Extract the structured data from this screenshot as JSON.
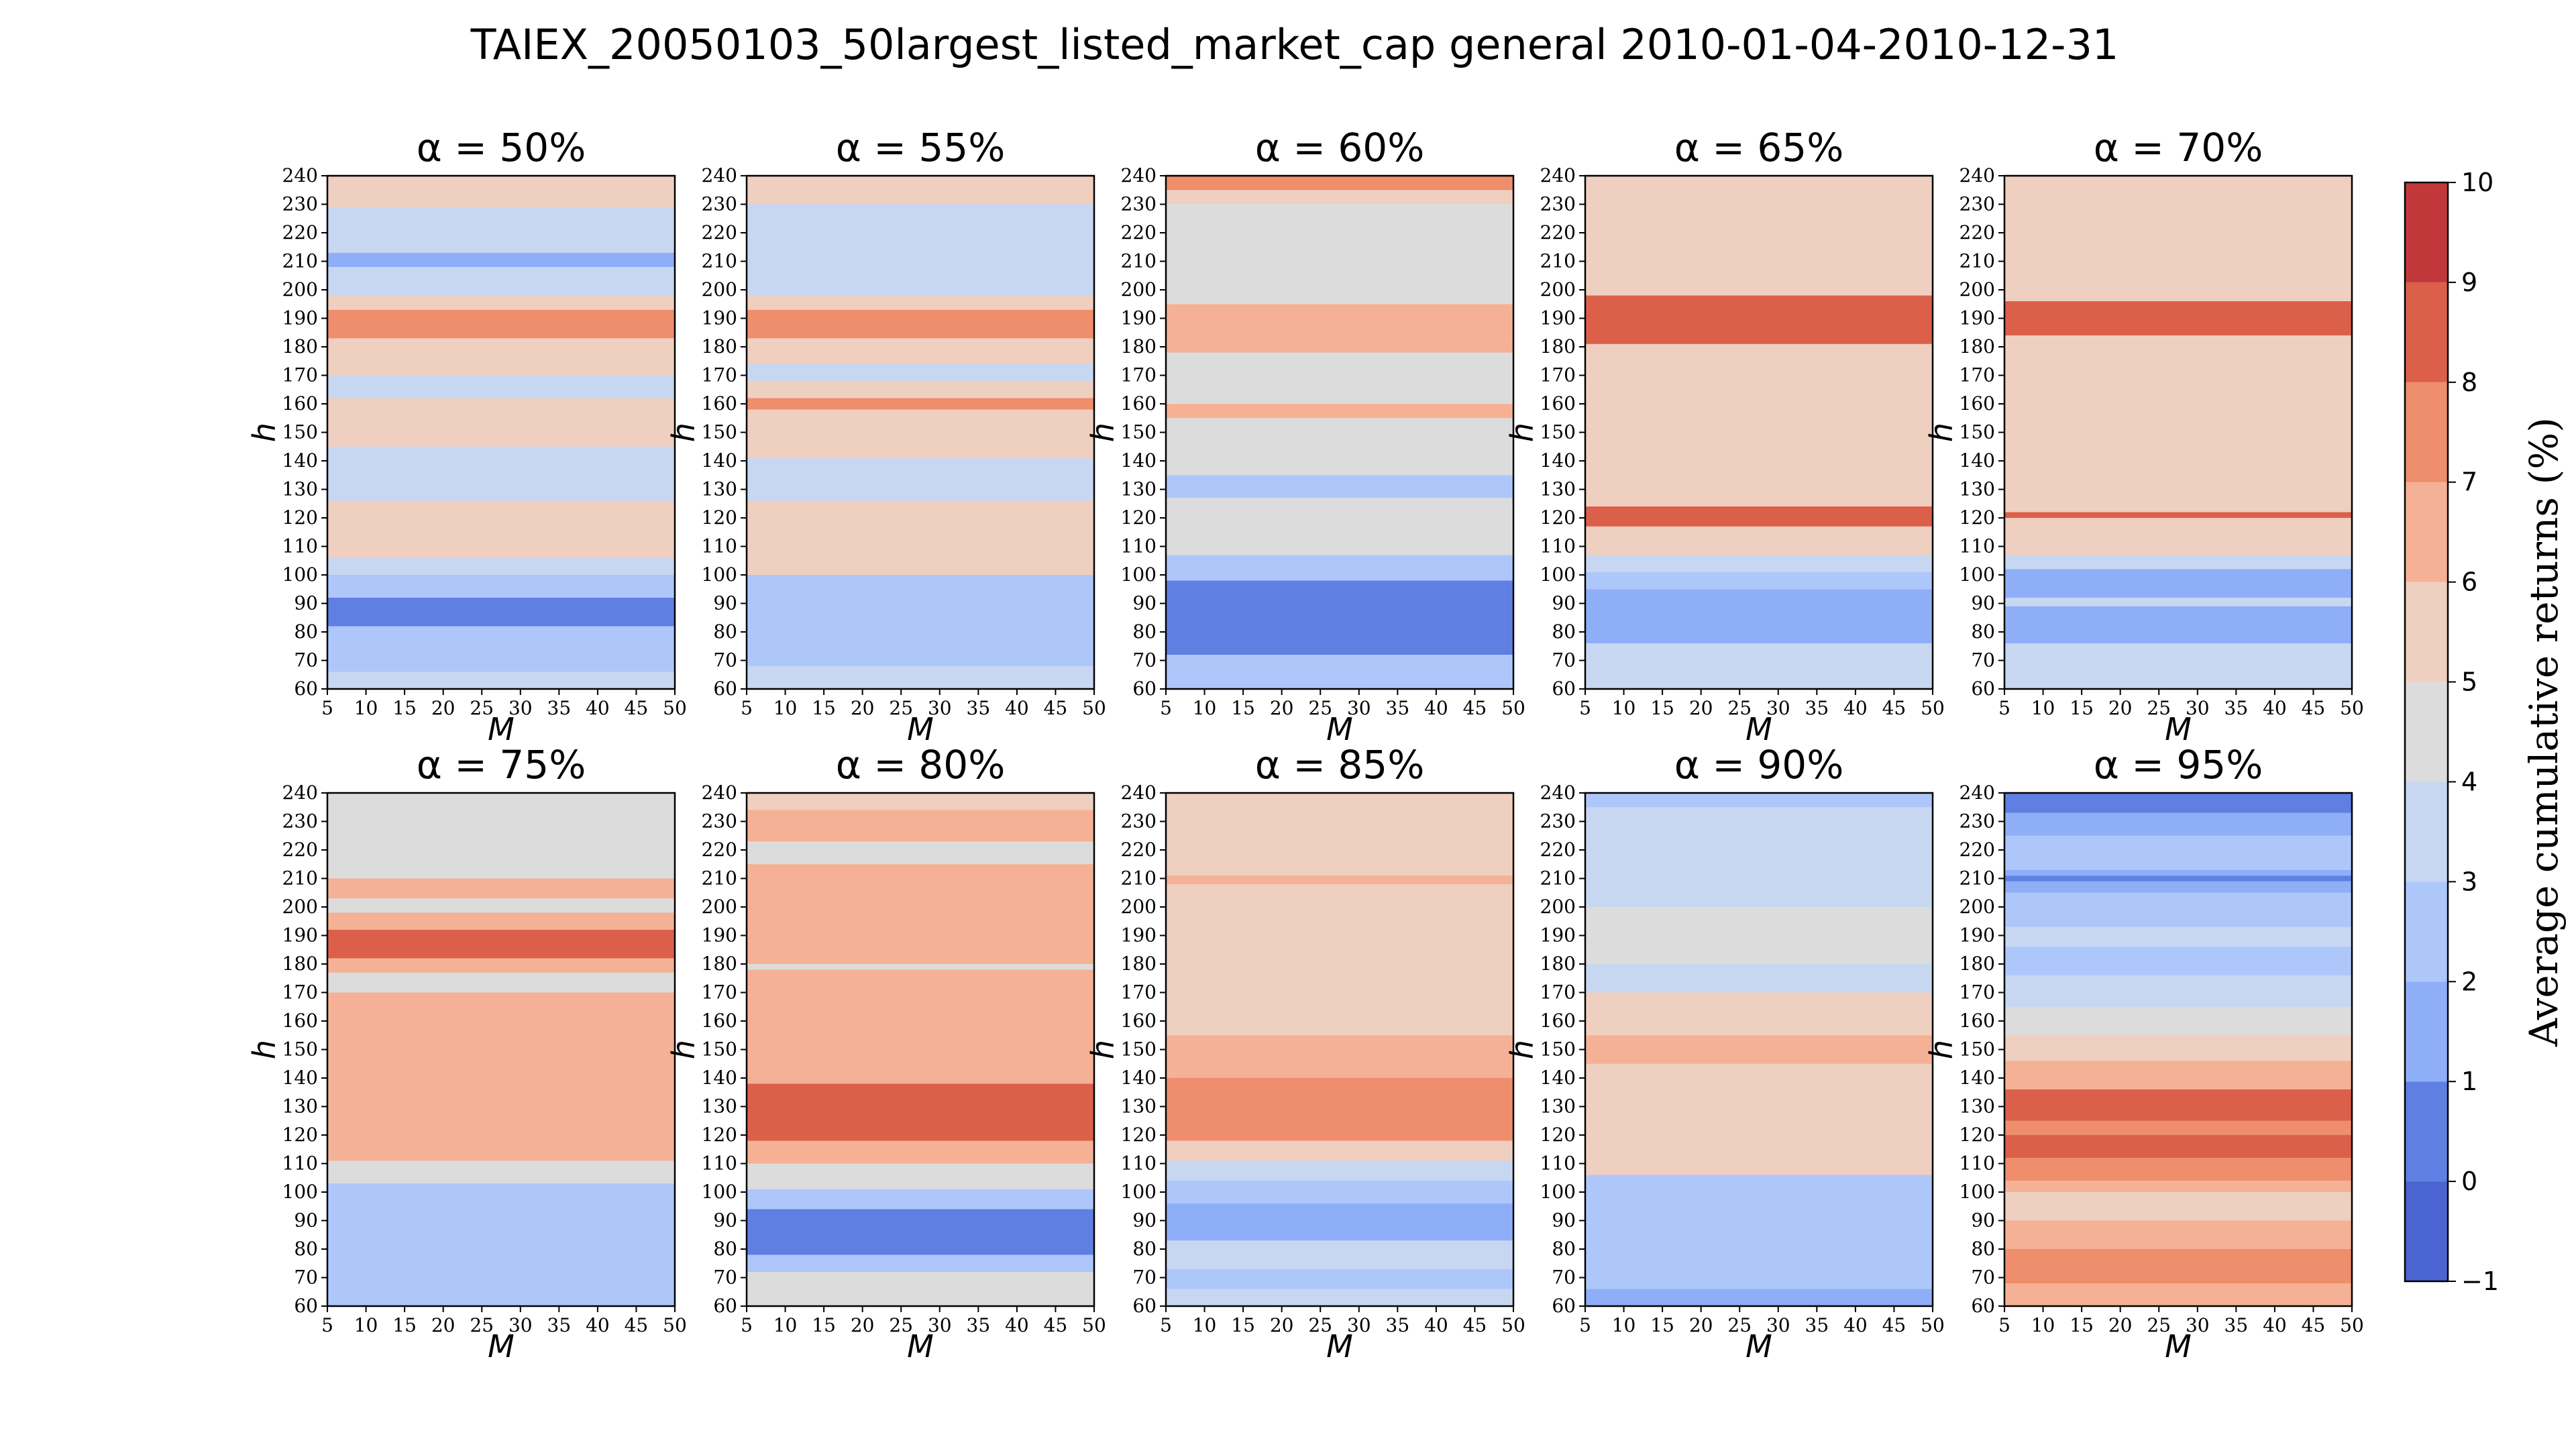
{
  "chart_data": {
    "type": "heatmap",
    "title": "TAIEX_20050103_50largest_listed_market_cap general 2010-01-04-2010-12-31",
    "xlabel": "M",
    "ylabel": "h",
    "x_ticks": [
      5,
      10,
      15,
      20,
      25,
      30,
      35,
      40,
      45,
      50
    ],
    "y_ticks": [
      60,
      70,
      80,
      90,
      100,
      110,
      120,
      130,
      140,
      150,
      160,
      170,
      180,
      190,
      200,
      210,
      220,
      230,
      240
    ],
    "xlim": [
      5,
      50
    ],
    "ylim": [
      60,
      240
    ],
    "colorbar": {
      "label": "Average cumulative returns (%)",
      "ticks": [
        -1,
        0,
        1,
        2,
        3,
        4,
        5,
        6,
        7,
        8,
        9,
        10
      ],
      "tick_labels": [
        "−1",
        "0",
        "1",
        "2",
        "3",
        "4",
        "5",
        "6",
        "7",
        "8",
        "9",
        "10"
      ],
      "levels": [
        {
          "range": [
            -1,
            0
          ],
          "color": "#4a64d1"
        },
        {
          "range": [
            0,
            1
          ],
          "color": "#5f7fe3"
        },
        {
          "range": [
            1,
            2
          ],
          "color": "#8faef8"
        },
        {
          "range": [
            2,
            3
          ],
          "color": "#aec7fb"
        },
        {
          "range": [
            3,
            4
          ],
          "color": "#c7d7f1"
        },
        {
          "range": [
            4,
            5
          ],
          "color": "#dcdcdd"
        },
        {
          "range": [
            5,
            6
          ],
          "color": "#efcfbf"
        },
        {
          "range": [
            6,
            7
          ],
          "color": "#f5b195"
        },
        {
          "range": [
            7,
            8
          ],
          "color": "#ee8e6c"
        },
        {
          "range": [
            8,
            9
          ],
          "color": "#dc5f4a"
        },
        {
          "range": [
            9,
            10
          ],
          "color": "#c2383a"
        }
      ]
    },
    "panels": [
      {
        "title": "α = 50%",
        "default": 5.5,
        "bands": [
          [
            60,
            66,
            3.5
          ],
          [
            66,
            82,
            2.5
          ],
          [
            82,
            92,
            0.5
          ],
          [
            92,
            100,
            2.5
          ],
          [
            100,
            106,
            3.5
          ],
          [
            106,
            126,
            5.5
          ],
          [
            126,
            145,
            3.5
          ],
          [
            145,
            150,
            5.5
          ],
          [
            150,
            162,
            5.5
          ],
          [
            162,
            170,
            3.5
          ],
          [
            170,
            183,
            5.5
          ],
          [
            183,
            193,
            7.5
          ],
          [
            193,
            198,
            5.5
          ],
          [
            198,
            208,
            3.5
          ],
          [
            208,
            213,
            1.5
          ],
          [
            213,
            229,
            3.5
          ],
          [
            229,
            240,
            5.5
          ]
        ]
      },
      {
        "title": "α = 55%",
        "default": 5.5,
        "bands": [
          [
            60,
            68,
            3.5
          ],
          [
            68,
            100,
            2.5
          ],
          [
            100,
            126,
            5.5
          ],
          [
            126,
            141,
            3.5
          ],
          [
            141,
            158,
            5.5
          ],
          [
            158,
            162,
            7.5
          ],
          [
            162,
            168,
            5.5
          ],
          [
            168,
            174,
            3.5
          ],
          [
            174,
            183,
            5.5
          ],
          [
            183,
            193,
            7.5
          ],
          [
            193,
            198,
            5.5
          ],
          [
            198,
            230,
            3.5
          ],
          [
            230,
            240,
            5.5
          ]
        ]
      },
      {
        "title": "α = 60%",
        "default": 4.5,
        "bands": [
          [
            60,
            72,
            2.5
          ],
          [
            72,
            98,
            0.5
          ],
          [
            98,
            107,
            2.5
          ],
          [
            107,
            127,
            4.5
          ],
          [
            127,
            135,
            2.5
          ],
          [
            135,
            155,
            4.5
          ],
          [
            155,
            160,
            6.5
          ],
          [
            160,
            165,
            4.5
          ],
          [
            165,
            178,
            4.5
          ],
          [
            178,
            183,
            6.5
          ],
          [
            183,
            195,
            6.5
          ],
          [
            195,
            230,
            4.5
          ],
          [
            230,
            235,
            5.5
          ],
          [
            235,
            240,
            7.5
          ]
        ]
      },
      {
        "title": "α = 65%",
        "default": 5.5,
        "bands": [
          [
            60,
            76,
            3.5
          ],
          [
            76,
            95,
            1.5
          ],
          [
            95,
            101,
            2.5
          ],
          [
            101,
            107,
            3.5
          ],
          [
            107,
            117,
            5.5
          ],
          [
            117,
            124,
            8.5
          ],
          [
            124,
            181,
            5.5
          ],
          [
            181,
            198,
            8.5
          ],
          [
            198,
            240,
            5.5
          ]
        ]
      },
      {
        "title": "α = 70%",
        "default": 5.5,
        "bands": [
          [
            60,
            76,
            3.5
          ],
          [
            76,
            89,
            1.5
          ],
          [
            89,
            92,
            3.5
          ],
          [
            92,
            102,
            1.5
          ],
          [
            102,
            107,
            3.5
          ],
          [
            107,
            120,
            5.5
          ],
          [
            120,
            122,
            8.5
          ],
          [
            122,
            184,
            5.5
          ],
          [
            184,
            196,
            8.5
          ],
          [
            196,
            240,
            5.5
          ]
        ]
      },
      {
        "title": "α = 75%",
        "default": 6.5,
        "bands": [
          [
            60,
            103,
            2.5
          ],
          [
            103,
            111,
            4.5
          ],
          [
            111,
            163,
            6.5
          ],
          [
            163,
            170,
            6.5
          ],
          [
            170,
            177,
            4.5
          ],
          [
            177,
            182,
            6.5
          ],
          [
            182,
            192,
            8.5
          ],
          [
            192,
            198,
            6.5
          ],
          [
            198,
            203,
            4.5
          ],
          [
            203,
            210,
            6.5
          ],
          [
            210,
            240,
            4.5
          ]
        ]
      },
      {
        "title": "α = 80%",
        "default": 6.5,
        "bands": [
          [
            60,
            72,
            4.5
          ],
          [
            72,
            78,
            2.5
          ],
          [
            78,
            94,
            0.5
          ],
          [
            94,
            101,
            2.5
          ],
          [
            101,
            110,
            4.5
          ],
          [
            110,
            118,
            6.5
          ],
          [
            118,
            138,
            8.5
          ],
          [
            138,
            178,
            6.5
          ],
          [
            178,
            180,
            4.5
          ],
          [
            180,
            215,
            6.5
          ],
          [
            215,
            223,
            4.5
          ],
          [
            223,
            234,
            6.5
          ],
          [
            234,
            240,
            5.5
          ]
        ]
      },
      {
        "title": "α = 85%",
        "default": 5.5,
        "bands": [
          [
            60,
            66,
            3.5
          ],
          [
            66,
            73,
            2.5
          ],
          [
            73,
            83,
            3.5
          ],
          [
            83,
            96,
            1.5
          ],
          [
            96,
            104,
            2.5
          ],
          [
            104,
            111,
            3.5
          ],
          [
            111,
            118,
            5.5
          ],
          [
            118,
            140,
            7.5
          ],
          [
            140,
            149,
            6.5
          ],
          [
            149,
            155,
            6.5
          ],
          [
            155,
            167,
            5.5
          ],
          [
            167,
            208,
            5.5
          ],
          [
            208,
            211,
            6.5
          ],
          [
            211,
            235,
            5.5
          ],
          [
            235,
            240,
            5.5
          ]
        ]
      },
      {
        "title": "α = 90%",
        "default": 3.5,
        "bands": [
          [
            60,
            66,
            1.5
          ],
          [
            66,
            76,
            2.5
          ],
          [
            76,
            94,
            2.5
          ],
          [
            94,
            106,
            2.5
          ],
          [
            106,
            145,
            5.5
          ],
          [
            145,
            155,
            6.5
          ],
          [
            155,
            170,
            5.5
          ],
          [
            170,
            180,
            3.5
          ],
          [
            180,
            200,
            4.5
          ],
          [
            200,
            235,
            3.5
          ],
          [
            235,
            240,
            2.5
          ]
        ]
      },
      {
        "title": "α = 95%",
        "default": 4.5,
        "bands": [
          [
            60,
            68,
            6.5
          ],
          [
            68,
            80,
            7.5
          ],
          [
            80,
            90,
            6.5
          ],
          [
            90,
            100,
            5.5
          ],
          [
            100,
            104,
            6.5
          ],
          [
            104,
            112,
            7.5
          ],
          [
            112,
            120,
            8.5
          ],
          [
            120,
            125,
            7.5
          ],
          [
            125,
            136,
            8.5
          ],
          [
            136,
            146,
            6.5
          ],
          [
            146,
            155,
            5.5
          ],
          [
            155,
            165,
            4.5
          ],
          [
            165,
            176,
            3.5
          ],
          [
            176,
            186,
            2.5
          ],
          [
            186,
            193,
            3.5
          ],
          [
            193,
            205,
            2.5
          ],
          [
            205,
            209,
            1.5
          ],
          [
            209,
            211,
            0.5
          ],
          [
            211,
            213,
            1.5
          ],
          [
            213,
            225,
            2.5
          ],
          [
            225,
            233,
            1.5
          ],
          [
            233,
            240,
            0.5
          ]
        ]
      }
    ]
  }
}
